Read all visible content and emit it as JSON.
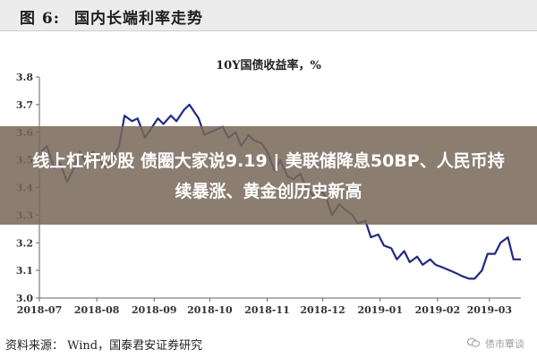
{
  "figure": {
    "label": "图 6:",
    "title": "国内长端利率走势"
  },
  "chart_data": {
    "type": "line",
    "title": "10Y国债收益率，%",
    "xlabel": "",
    "ylabel": "",
    "ylim": [
      3.0,
      3.8
    ],
    "yticks": [
      "3.0",
      "3.1",
      "3.2",
      "3.3",
      "3.4",
      "3.5",
      "3.6",
      "3.7",
      "3.8"
    ],
    "xlim": [
      "2018-07-01",
      "2019-03-18"
    ],
    "xticks": [
      "2018-07",
      "2018-08",
      "2018-09",
      "2018-10",
      "2018-11",
      "2018-12",
      "2019-01",
      "2019-02",
      "2019-03"
    ],
    "grid": false,
    "color": "#1f2a80",
    "series": [
      {
        "x": [
          "2018-07-02",
          "2018-07-05",
          "2018-07-09",
          "2018-07-12",
          "2018-07-16",
          "2018-07-19",
          "2018-07-23",
          "2018-07-26",
          "2018-07-30",
          "2018-08-02",
          "2018-08-06",
          "2018-08-09",
          "2018-08-13",
          "2018-08-16",
          "2018-08-20",
          "2018-08-23",
          "2018-08-27",
          "2018-08-30",
          "2018-09-03",
          "2018-09-06",
          "2018-09-10",
          "2018-09-13",
          "2018-09-17",
          "2018-09-20",
          "2018-09-25",
          "2018-09-28",
          "2018-10-08",
          "2018-10-11",
          "2018-10-15",
          "2018-10-18",
          "2018-10-22",
          "2018-10-25",
          "2018-10-29",
          "2018-11-01",
          "2018-11-05",
          "2018-11-08",
          "2018-11-12",
          "2018-11-15",
          "2018-11-19",
          "2018-11-22",
          "2018-11-26",
          "2018-11-29",
          "2018-12-03",
          "2018-12-06",
          "2018-12-10",
          "2018-12-13",
          "2018-12-17",
          "2018-12-20",
          "2018-12-24",
          "2018-12-27",
          "2018-12-31",
          "2019-01-03",
          "2019-01-07",
          "2019-01-10",
          "2019-01-14",
          "2019-01-17",
          "2019-01-21",
          "2019-01-24",
          "2019-01-28",
          "2019-01-31",
          "2019-02-04",
          "2019-02-11",
          "2019-02-14",
          "2019-02-18",
          "2019-02-21",
          "2019-02-25",
          "2019-02-28",
          "2019-03-04",
          "2019-03-07",
          "2019-03-11",
          "2019-03-14",
          "2019-03-18"
        ],
        "y": [
          3.53,
          3.55,
          3.47,
          3.49,
          3.42,
          3.46,
          3.53,
          3.49,
          3.53,
          3.5,
          3.47,
          3.5,
          3.55,
          3.66,
          3.64,
          3.65,
          3.58,
          3.61,
          3.65,
          3.63,
          3.66,
          3.64,
          3.68,
          3.7,
          3.65,
          3.59,
          3.62,
          3.58,
          3.6,
          3.55,
          3.59,
          3.57,
          3.56,
          3.53,
          3.46,
          3.5,
          3.44,
          3.43,
          3.45,
          3.4,
          3.37,
          3.4,
          3.36,
          3.3,
          3.34,
          3.32,
          3.3,
          3.27,
          3.28,
          3.22,
          3.23,
          3.19,
          3.18,
          3.14,
          3.17,
          3.13,
          3.15,
          3.12,
          3.14,
          3.12,
          3.11,
          3.09,
          3.08,
          3.07,
          3.07,
          3.1,
          3.16,
          3.16,
          3.2,
          3.22,
          3.14,
          3.14
        ]
      }
    ]
  },
  "overlay": {
    "text": "线上杠杆炒股 债圈大家说9.19 | 美联储降息50BP、人民币持续暴涨、黄金创历史新高"
  },
  "source": "资料来源： Wind，国泰君安证券研究",
  "watermark": {
    "icon": "weixin-icon",
    "text": "债市覃谈"
  }
}
